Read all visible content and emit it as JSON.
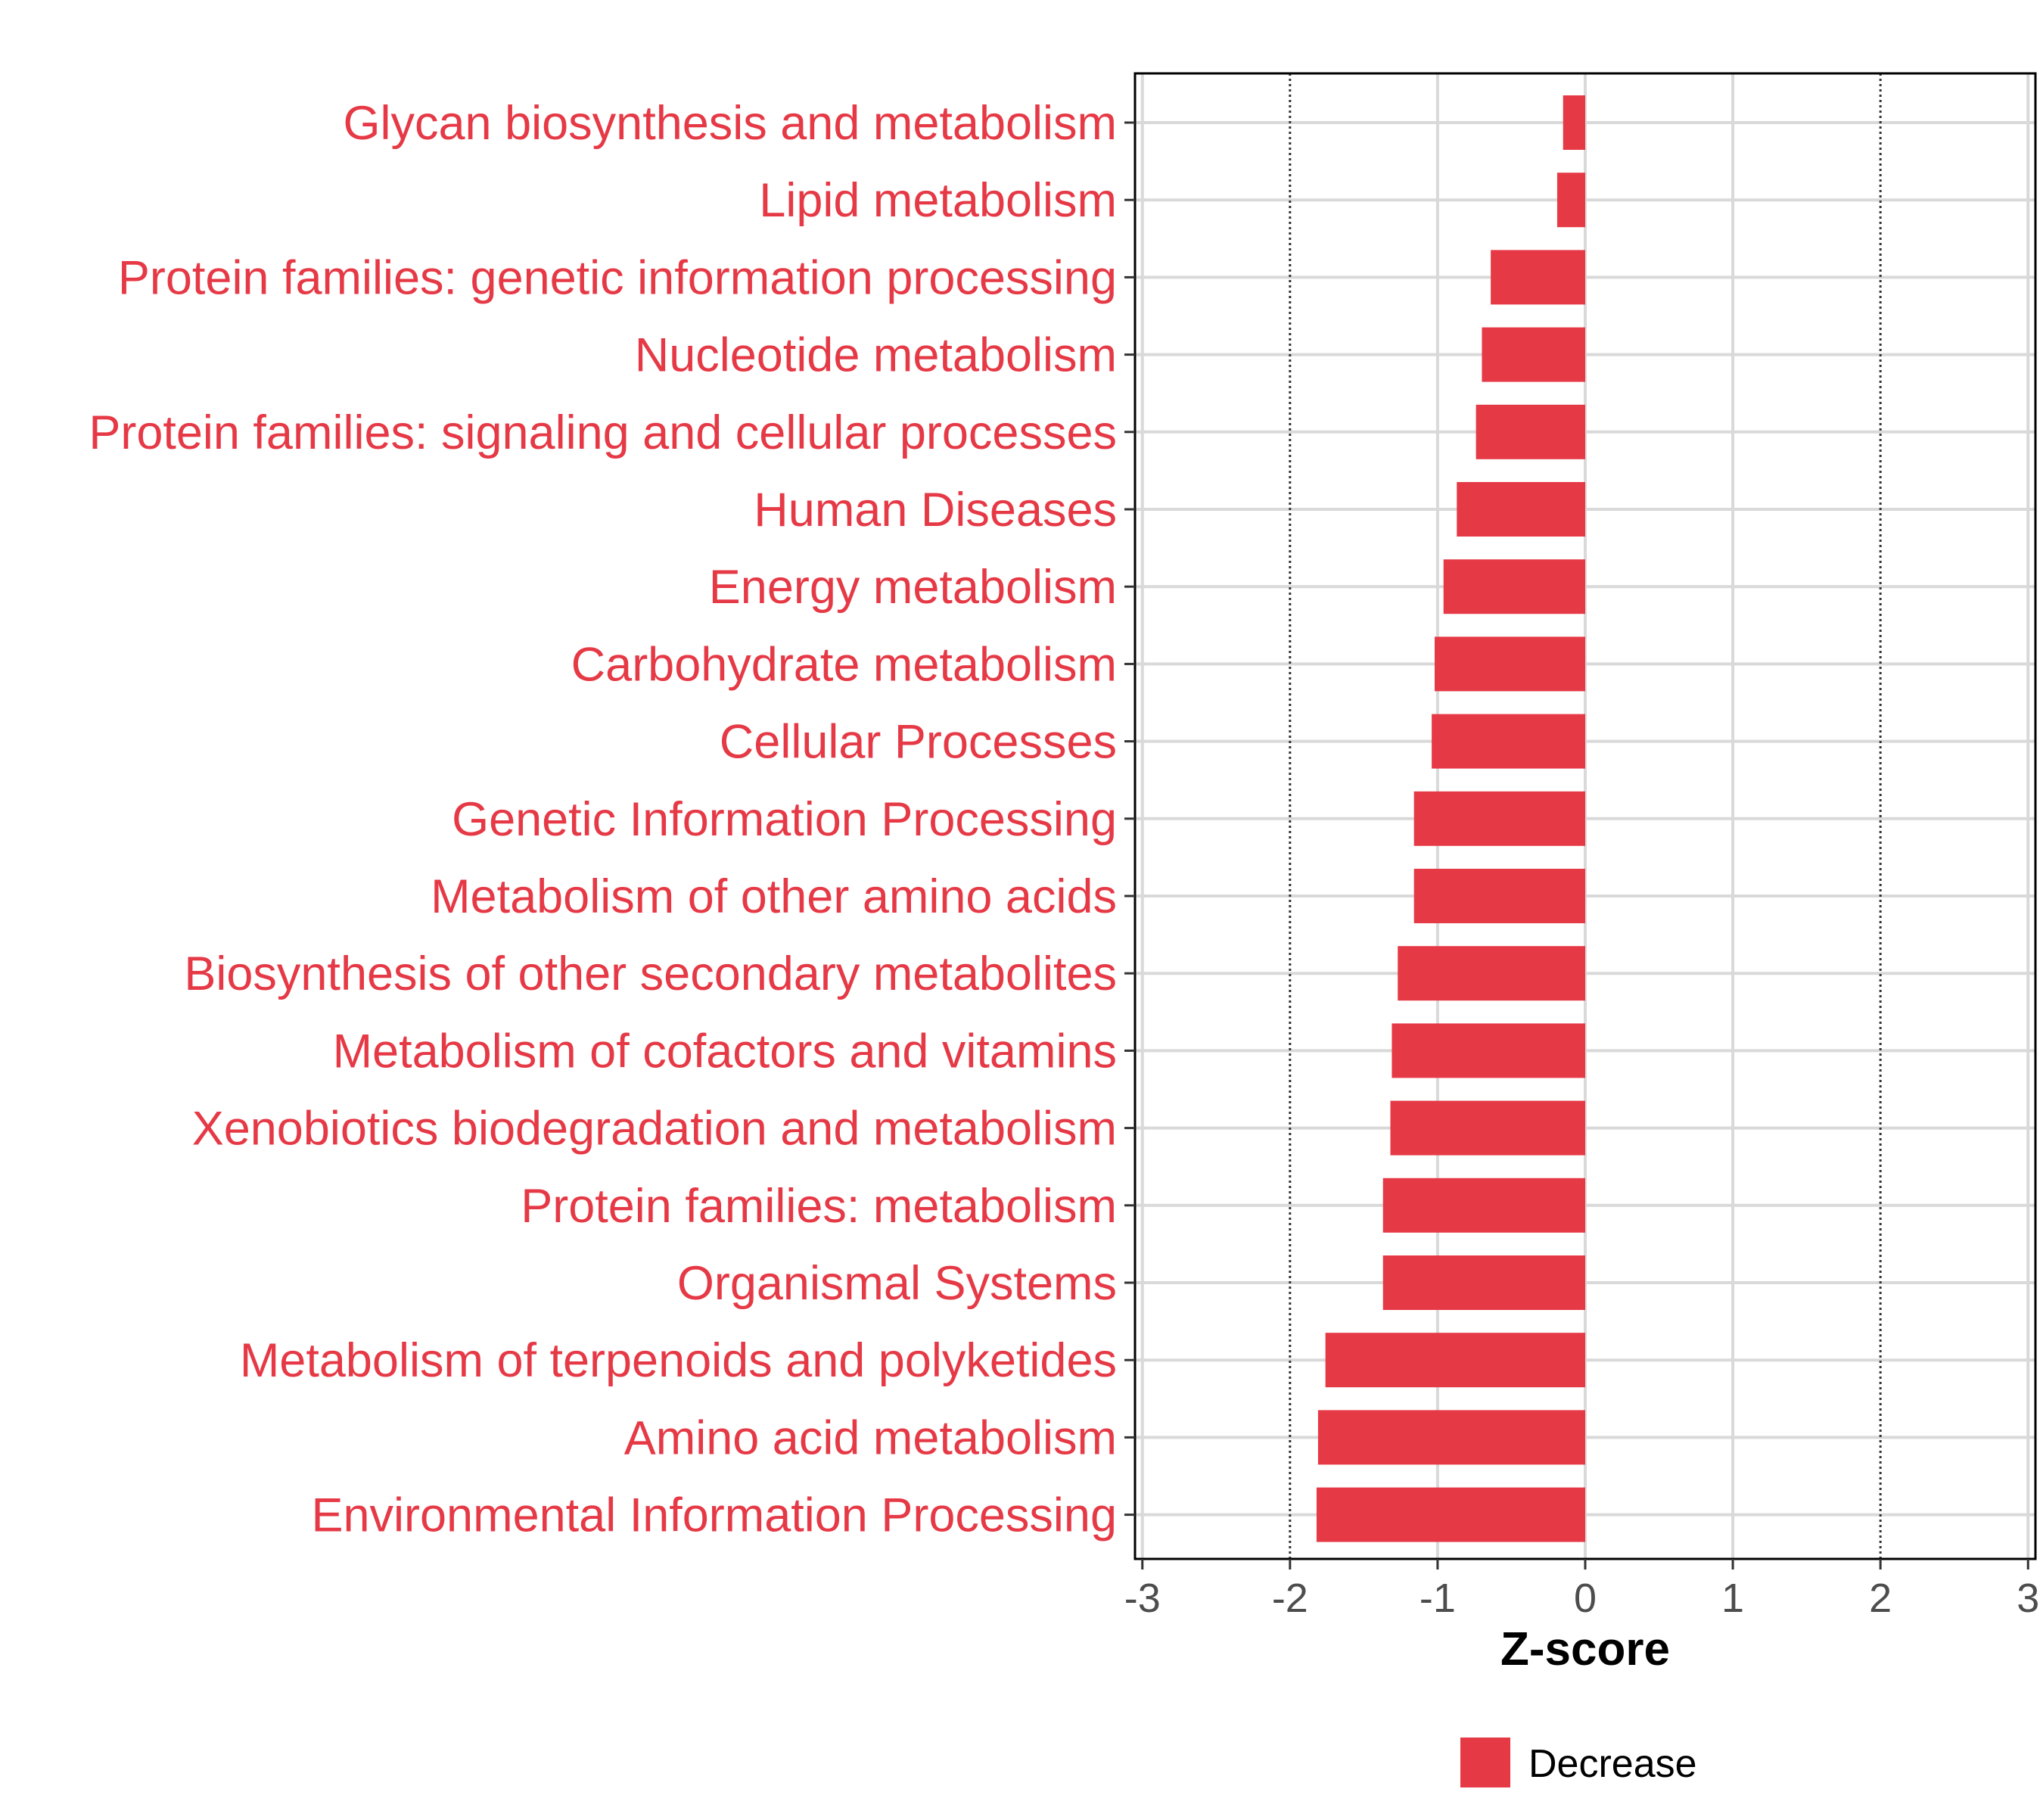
{
  "chart_data": {
    "type": "bar",
    "orientation": "horizontal",
    "categories": [
      "Glycan biosynthesis and metabolism",
      "Lipid metabolism",
      "Protein families: genetic information processing",
      "Nucleotide metabolism",
      "Protein families: signaling and cellular processes",
      "Human Diseases",
      "Energy metabolism",
      "Carbohydrate metabolism",
      "Cellular Processes",
      "Genetic Information Processing",
      "Metabolism of other amino acids",
      "Biosynthesis of other secondary metabolites",
      "Metabolism of cofactors and vitamins",
      "Xenobiotics biodegradation and metabolism",
      "Protein families: metabolism",
      "Organismal Systems",
      "Metabolism of terpenoids and polyketides",
      "Amino acid metabolism",
      "Environmental Information Processing"
    ],
    "values": [
      -0.15,
      -0.19,
      -0.64,
      -0.7,
      -0.74,
      -0.87,
      -0.96,
      -1.02,
      -1.04,
      -1.16,
      -1.16,
      -1.27,
      -1.31,
      -1.32,
      -1.37,
      -1.37,
      -1.76,
      -1.81,
      -1.82
    ],
    "series": [
      {
        "name": "Decrease",
        "color": "#E63946"
      }
    ],
    "title": "",
    "xlabel": "Z-score",
    "ylabel": "",
    "xlim": [
      -3.05,
      3.05
    ],
    "xticks": [
      -3,
      -2,
      -1,
      0,
      1,
      2,
      3
    ],
    "xtick_labels": [
      "-3",
      "-2",
      "-1",
      "0",
      "1",
      "2",
      "3"
    ],
    "reference_lines": [
      -2,
      2
    ],
    "grid": true,
    "legend_position": "bottom",
    "category_label_color": "#E63946"
  }
}
